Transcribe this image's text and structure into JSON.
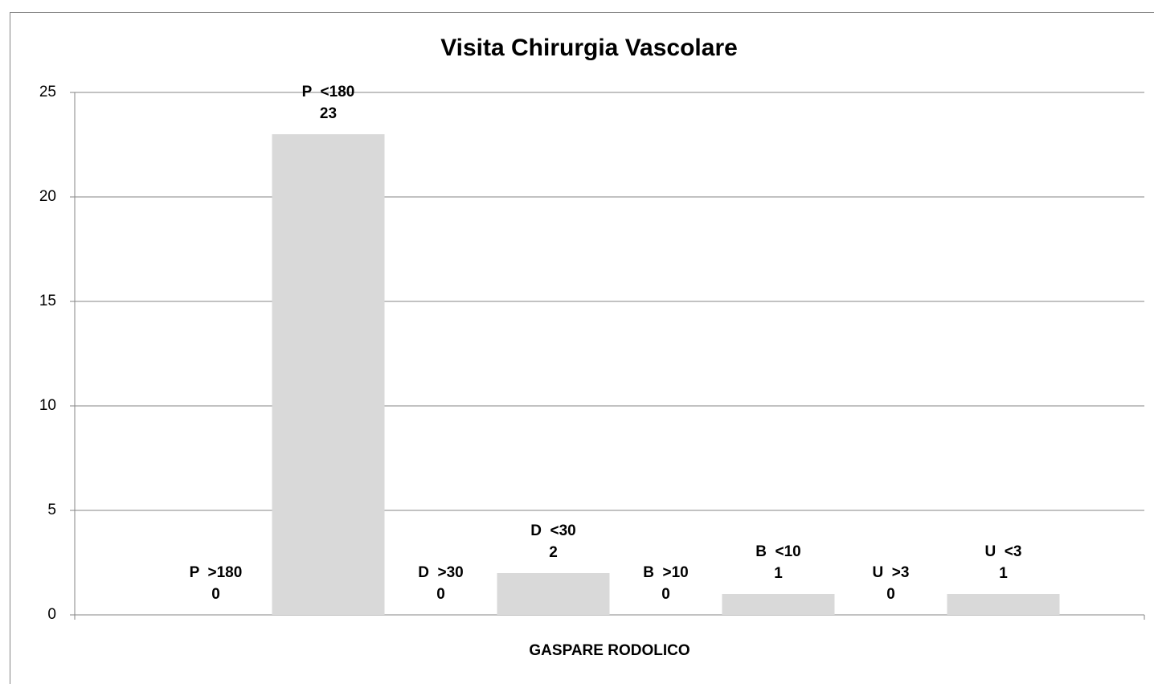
{
  "chart_data": {
    "type": "bar",
    "title": "Visita Chirurgia Vascolare",
    "categories": [
      "GASPARE RODOLICO"
    ],
    "series": [
      {
        "name": "P  >180",
        "color": "#d9d9d9",
        "values": [
          0
        ]
      },
      {
        "name": "P  <180",
        "color": "#d9d9d9",
        "values": [
          23
        ]
      },
      {
        "name": "D  >30",
        "color": "#d9d9d9",
        "values": [
          0
        ]
      },
      {
        "name": "D  <30",
        "color": "#d9d9d9",
        "values": [
          2
        ]
      },
      {
        "name": "B  >10",
        "color": "#d9d9d9",
        "values": [
          0
        ]
      },
      {
        "name": "B  <10",
        "color": "#d9d9d9",
        "values": [
          1
        ]
      },
      {
        "name": "U  >3",
        "color": "#d9d9d9",
        "values": [
          0
        ]
      },
      {
        "name": "U  <3",
        "color": "#d9d9d9",
        "values": [
          1
        ]
      }
    ],
    "ylim": [
      0,
      25
    ],
    "yticks": [
      0,
      5,
      10,
      15,
      20,
      25
    ],
    "grid": true
  }
}
